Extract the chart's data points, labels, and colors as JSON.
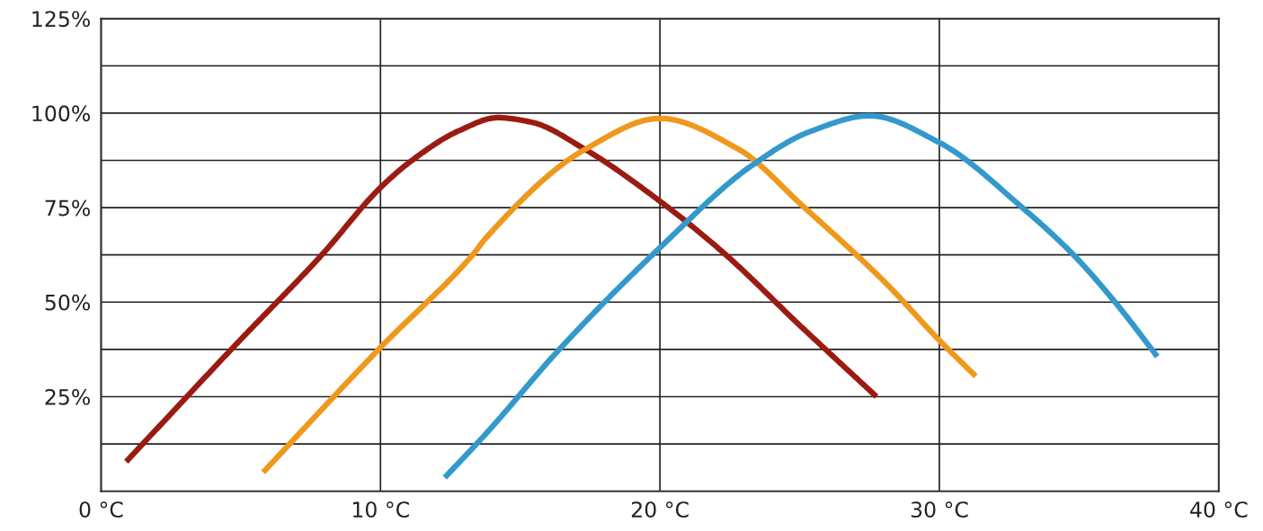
{
  "chart_data": {
    "type": "line",
    "xlim": [
      0,
      40
    ],
    "ylim": [
      0,
      125
    ],
    "xticks": [
      {
        "value": 0,
        "label": "0 °C"
      },
      {
        "value": 10,
        "label": "10 °C"
      },
      {
        "value": 20,
        "label": "20 °C"
      },
      {
        "value": 30,
        "label": "30 °C"
      },
      {
        "value": 40,
        "label": "40 °C"
      }
    ],
    "yticks": [
      {
        "value": 12.5,
        "label": null
      },
      {
        "value": 25,
        "label": "25%"
      },
      {
        "value": 37.5,
        "label": null
      },
      {
        "value": 50,
        "label": "50%"
      },
      {
        "value": 62.5,
        "label": null
      },
      {
        "value": 75,
        "label": "75%"
      },
      {
        "value": 87.5,
        "label": null
      },
      {
        "value": 100,
        "label": "100%"
      },
      {
        "value": 112.5,
        "label": null
      },
      {
        "value": 125,
        "label": "125%"
      }
    ],
    "grid": true,
    "marker": "none",
    "line_style": "solid",
    "series": [
      {
        "color": "#9b1b12",
        "x": [
          0.9,
          4.75,
          7.9,
          10,
          11.2,
          12.8,
          14.2,
          15.4,
          17.3,
          20,
          22.3,
          25,
          27.75
        ],
        "values": [
          7.8,
          38.2,
          62.5,
          80.3,
          87.9,
          95.3,
          98.8,
          97.6,
          90.5,
          76.7,
          62.9,
          43.9,
          25.0
        ]
      },
      {
        "color": "#f0981c",
        "x": [
          5.8,
          10,
          13.3,
          13.8,
          17.3,
          20,
          22.8,
          25.1,
          28.1,
          30,
          31.3
        ],
        "values": [
          5.0,
          38,
          62.5,
          67.2,
          90.3,
          98.6,
          90.5,
          75.5,
          54.9,
          39.9,
          30.4
        ]
      },
      {
        "color": "#3399cc",
        "x": [
          12.3,
          13.8,
          16.4,
          20,
          23.3,
          25.4,
          27.5,
          30,
          33,
          34.8,
          36.3,
          37.8
        ],
        "values": [
          3.6,
          15.4,
          37.5,
          64.4,
          86.2,
          95.2,
          99.3,
          92.2,
          74.8,
          62.5,
          49.9,
          35.6
        ]
      }
    ]
  }
}
